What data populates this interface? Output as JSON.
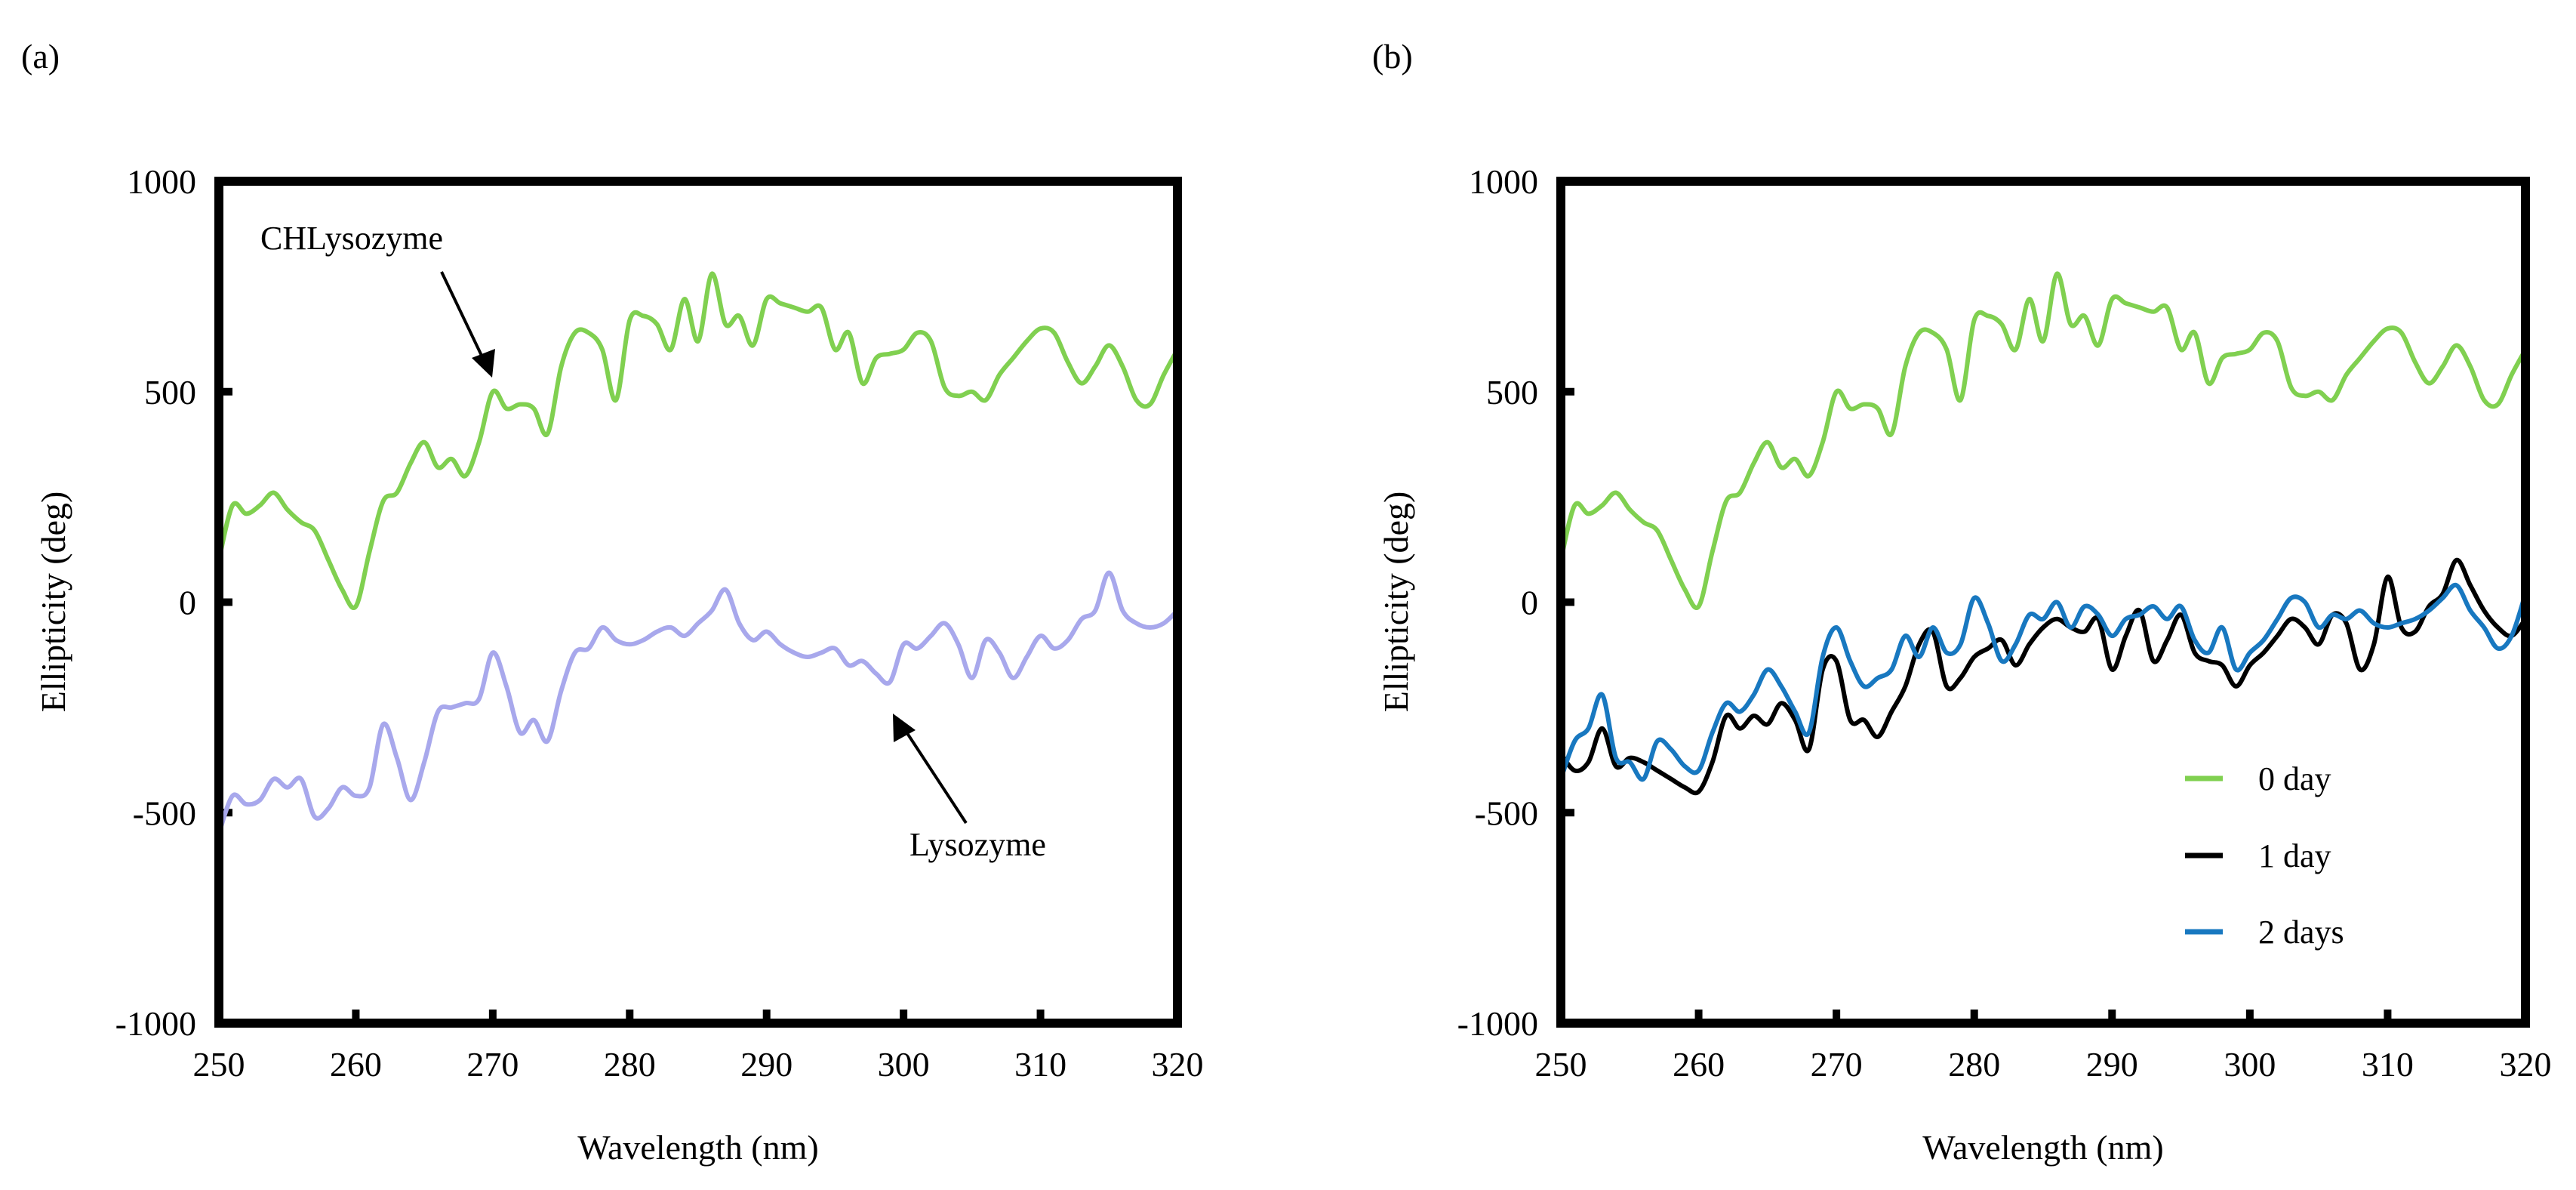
{
  "chart_data": [
    {
      "type": "line",
      "panel_label": "(a)",
      "xlabel": "Wavelength (nm)",
      "ylabel": "Ellipticity (deg)",
      "xlim": [
        250,
        320
      ],
      "ylim": [
        -1000,
        1000
      ],
      "xticks": [
        250,
        260,
        270,
        280,
        290,
        300,
        310,
        320
      ],
      "yticks": [
        -1000,
        -500,
        0,
        500,
        1000
      ],
      "xtick_labels": [
        "250",
        "260",
        "270",
        "280",
        "290",
        "300",
        "310",
        "320"
      ],
      "ytick_labels": [
        "-1000",
        "-500",
        "0",
        "500",
        "1000"
      ],
      "legend": "none",
      "annotations": [
        {
          "text": "CHLysozyme",
          "points_to": {
            "x": 270.5,
            "y": 520
          }
        },
        {
          "text": "Lysozyme",
          "points_to": {
            "x": 299,
            "y": -270
          }
        }
      ],
      "series": [
        {
          "name": "CHLysozyme",
          "color": "#80d050",
          "x": [
            250,
            251,
            252,
            253,
            254,
            255,
            256,
            257,
            258,
            259,
            260,
            261,
            262,
            263,
            264,
            265,
            266,
            267,
            268,
            269,
            270,
            271,
            272,
            273,
            274,
            275,
            276,
            277,
            278,
            279,
            280,
            281,
            282,
            283,
            284,
            285,
            286,
            287,
            288,
            289,
            290,
            291,
            292,
            293,
            294,
            295,
            296,
            297,
            298,
            299,
            300,
            301,
            302,
            303,
            304,
            305,
            306,
            307,
            308,
            309,
            310,
            311,
            312,
            313,
            314,
            315,
            316,
            317,
            318,
            319,
            320
          ],
          "values": [
            100,
            230,
            210,
            230,
            260,
            220,
            190,
            170,
            100,
            30,
            -10,
            120,
            240,
            260,
            330,
            380,
            320,
            340,
            300,
            380,
            500,
            460,
            470,
            460,
            400,
            560,
            640,
            640,
            600,
            480,
            670,
            680,
            660,
            600,
            720,
            620,
            780,
            660,
            680,
            610,
            720,
            710,
            700,
            690,
            700,
            600,
            640,
            520,
            580,
            590,
            600,
            640,
            620,
            510,
            490,
            500,
            480,
            540,
            580,
            620,
            650,
            640,
            570,
            520,
            560,
            610,
            560,
            480,
            470,
            540,
            600
          ]
        },
        {
          "name": "Lysozyme",
          "color": "#a8a8ec",
          "x": [
            250,
            251,
            252,
            253,
            254,
            255,
            256,
            257,
            258,
            259,
            260,
            261,
            262,
            263,
            264,
            265,
            266,
            267,
            268,
            269,
            270,
            271,
            272,
            273,
            274,
            275,
            276,
            277,
            278,
            279,
            280,
            281,
            282,
            283,
            284,
            285,
            286,
            287,
            288,
            289,
            290,
            291,
            292,
            293,
            294,
            295,
            296,
            297,
            298,
            299,
            300,
            301,
            302,
            303,
            304,
            305,
            306,
            307,
            308,
            309,
            310,
            311,
            312,
            313,
            314,
            315,
            316,
            317,
            318,
            319,
            320
          ],
          "values": [
            -550,
            -460,
            -480,
            -470,
            -420,
            -440,
            -420,
            -510,
            -490,
            -440,
            -460,
            -440,
            -290,
            -370,
            -470,
            -380,
            -260,
            -250,
            -240,
            -230,
            -120,
            -200,
            -310,
            -280,
            -330,
            -210,
            -120,
            -110,
            -60,
            -90,
            -100,
            -90,
            -70,
            -60,
            -80,
            -50,
            -20,
            30,
            -50,
            -90,
            -70,
            -100,
            -120,
            -130,
            -120,
            -110,
            -150,
            -140,
            -170,
            -190,
            -100,
            -110,
            -80,
            -50,
            -100,
            -180,
            -90,
            -120,
            -180,
            -130,
            -80,
            -110,
            -90,
            -40,
            -20,
            70,
            -20,
            -50,
            -60,
            -50,
            -20
          ]
        }
      ]
    },
    {
      "type": "line",
      "panel_label": "(b)",
      "xlabel": "Wavelength (nm)",
      "ylabel": "Ellipticity (deg)",
      "xlim": [
        250,
        320
      ],
      "ylim": [
        -1000,
        1000
      ],
      "xticks": [
        250,
        260,
        270,
        280,
        290,
        300,
        310,
        320
      ],
      "yticks": [
        -1000,
        -500,
        0,
        500,
        1000
      ],
      "xtick_labels": [
        "250",
        "260",
        "270",
        "280",
        "290",
        "300",
        "310",
        "320"
      ],
      "ytick_labels": [
        "-1000",
        "-500",
        "0",
        "500",
        "1000"
      ],
      "legend": "bottom-right",
      "series": [
        {
          "name": "0 day",
          "color": "#80d050",
          "x": [
            250,
            251,
            252,
            253,
            254,
            255,
            256,
            257,
            258,
            259,
            260,
            261,
            262,
            263,
            264,
            265,
            266,
            267,
            268,
            269,
            270,
            271,
            272,
            273,
            274,
            275,
            276,
            277,
            278,
            279,
            280,
            281,
            282,
            283,
            284,
            285,
            286,
            287,
            288,
            289,
            290,
            291,
            292,
            293,
            294,
            295,
            296,
            297,
            298,
            299,
            300,
            301,
            302,
            303,
            304,
            305,
            306,
            307,
            308,
            309,
            310,
            311,
            312,
            313,
            314,
            315,
            316,
            317,
            318,
            319,
            320
          ],
          "values": [
            100,
            230,
            210,
            230,
            260,
            220,
            190,
            170,
            100,
            30,
            -10,
            120,
            240,
            260,
            330,
            380,
            320,
            340,
            300,
            380,
            500,
            460,
            470,
            460,
            400,
            560,
            640,
            640,
            600,
            480,
            670,
            680,
            660,
            600,
            720,
            620,
            780,
            660,
            680,
            610,
            720,
            710,
            700,
            690,
            700,
            600,
            640,
            520,
            580,
            590,
            600,
            640,
            620,
            510,
            490,
            500,
            480,
            540,
            580,
            620,
            650,
            640,
            570,
            520,
            560,
            610,
            560,
            480,
            470,
            540,
            600
          ]
        },
        {
          "name": "1 day",
          "color": "#000000",
          "x": [
            250,
            251,
            252,
            253,
            254,
            255,
            256,
            257,
            258,
            259,
            260,
            261,
            262,
            263,
            264,
            265,
            266,
            267,
            268,
            269,
            270,
            271,
            272,
            273,
            274,
            275,
            276,
            277,
            278,
            279,
            280,
            281,
            282,
            283,
            284,
            285,
            286,
            287,
            288,
            289,
            290,
            291,
            292,
            293,
            294,
            295,
            296,
            297,
            298,
            299,
            300,
            301,
            302,
            303,
            304,
            305,
            306,
            307,
            308,
            309,
            310,
            311,
            312,
            313,
            314,
            315,
            316,
            317,
            318,
            319,
            320
          ],
          "values": [
            -360,
            -400,
            -380,
            -300,
            -390,
            -370,
            -380,
            -400,
            -420,
            -440,
            -450,
            -380,
            -270,
            -300,
            -270,
            -290,
            -240,
            -280,
            -350,
            -160,
            -140,
            -280,
            -280,
            -320,
            -260,
            -200,
            -100,
            -70,
            -200,
            -180,
            -130,
            -110,
            -90,
            -150,
            -100,
            -60,
            -40,
            -60,
            -70,
            -40,
            -160,
            -80,
            -20,
            -140,
            -90,
            -30,
            -120,
            -140,
            -150,
            -200,
            -150,
            -120,
            -80,
            -40,
            -60,
            -100,
            -30,
            -50,
            -160,
            -100,
            60,
            -60,
            -70,
            -10,
            20,
            100,
            40,
            -20,
            -60,
            -80,
            -40
          ]
        },
        {
          "name": "2 days",
          "color": "#1878c0",
          "x": [
            250,
            251,
            252,
            253,
            254,
            255,
            256,
            257,
            258,
            259,
            260,
            261,
            262,
            263,
            264,
            265,
            266,
            267,
            268,
            269,
            270,
            271,
            272,
            273,
            274,
            275,
            276,
            277,
            278,
            279,
            280,
            281,
            282,
            283,
            284,
            285,
            286,
            287,
            288,
            289,
            290,
            291,
            292,
            293,
            294,
            295,
            296,
            297,
            298,
            299,
            300,
            301,
            302,
            303,
            304,
            305,
            306,
            307,
            308,
            309,
            310,
            311,
            312,
            313,
            314,
            315,
            316,
            317,
            318,
            319,
            320
          ],
          "values": [
            -420,
            -330,
            -300,
            -220,
            -370,
            -380,
            -420,
            -330,
            -350,
            -390,
            -400,
            -310,
            -240,
            -260,
            -220,
            -160,
            -200,
            -260,
            -310,
            -130,
            -60,
            -140,
            -200,
            -180,
            -160,
            -80,
            -130,
            -60,
            -120,
            -100,
            10,
            -50,
            -140,
            -100,
            -30,
            -40,
            0,
            -60,
            -10,
            -30,
            -80,
            -40,
            -30,
            -10,
            -40,
            -10,
            -90,
            -120,
            -60,
            -160,
            -120,
            -90,
            -40,
            10,
            0,
            -60,
            -30,
            -40,
            -20,
            -50,
            -60,
            -50,
            -40,
            -20,
            10,
            40,
            -20,
            -60,
            -110,
            -80,
            20
          ]
        }
      ]
    }
  ]
}
